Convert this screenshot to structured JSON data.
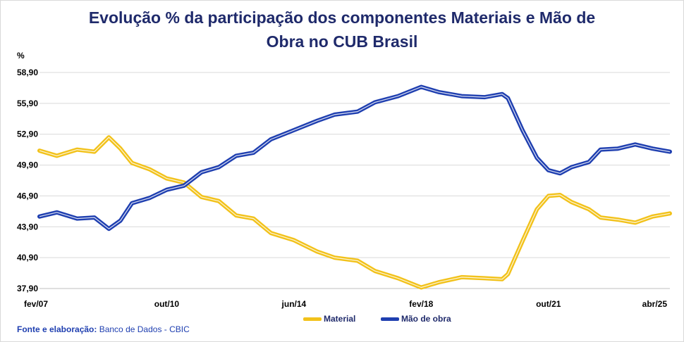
{
  "title": {
    "line1": "Evolução % da participação dos componentes Materiais e Mão de",
    "line2": "Obra no CUB Brasil"
  },
  "unit_label": "%",
  "source": {
    "label": "Fonte e elaboração:",
    "text": " Banco de Dados - CBIC"
  },
  "colors": {
    "material": "#f2c21b",
    "mao_de_obra": "#1f3fb0",
    "grid": "#d9d9d9",
    "text": "#1f2a6b"
  },
  "chart_data": {
    "type": "line",
    "title": "Evolução % da participação dos componentes Materiais e Mão de Obra no CUB Brasil",
    "ylabel": "%",
    "ylim": [
      37.9,
      58.9
    ],
    "yticks": [
      "58,90",
      "55,90",
      "52,90",
      "49,90",
      "46,90",
      "43,90",
      "40,90",
      "37,90"
    ],
    "ytick_values": [
      58.9,
      55.9,
      52.9,
      49.9,
      46.9,
      43.9,
      40.9,
      37.9
    ],
    "x_range": [
      "2007-02",
      "2025-04"
    ],
    "xticks": [
      {
        "label": "fev/07",
        "date": "2007-02"
      },
      {
        "label": "out/10",
        "date": "2010-10"
      },
      {
        "label": "jun/14",
        "date": "2014-06"
      },
      {
        "label": "fev/18",
        "date": "2018-02"
      },
      {
        "label": "out/21",
        "date": "2021-10"
      },
      {
        "label": "abr/25",
        "date": "2025-04"
      }
    ],
    "legend_position": "bottom",
    "grid": true,
    "series": [
      {
        "name": "Material",
        "points": [
          [
            "2007-02",
            51.3
          ],
          [
            "2007-08",
            50.8
          ],
          [
            "2008-03",
            51.4
          ],
          [
            "2008-09",
            51.2
          ],
          [
            "2009-02",
            52.6
          ],
          [
            "2009-06",
            51.5
          ],
          [
            "2009-10",
            50.1
          ],
          [
            "2010-04",
            49.5
          ],
          [
            "2010-10",
            48.6
          ],
          [
            "2011-04",
            48.2
          ],
          [
            "2011-10",
            46.8
          ],
          [
            "2012-04",
            46.4
          ],
          [
            "2012-10",
            45.0
          ],
          [
            "2013-04",
            44.7
          ],
          [
            "2013-10",
            43.3
          ],
          [
            "2014-06",
            42.6
          ],
          [
            "2015-02",
            41.5
          ],
          [
            "2015-08",
            40.9
          ],
          [
            "2016-04",
            40.6
          ],
          [
            "2016-10",
            39.6
          ],
          [
            "2017-06",
            38.9
          ],
          [
            "2018-02",
            38.0
          ],
          [
            "2018-08",
            38.5
          ],
          [
            "2019-04",
            39.0
          ],
          [
            "2019-12",
            38.9
          ],
          [
            "2020-06",
            38.8
          ],
          [
            "2020-08",
            39.3
          ],
          [
            "2021-01",
            42.5
          ],
          [
            "2021-06",
            45.6
          ],
          [
            "2021-10",
            46.9
          ],
          [
            "2022-02",
            47.0
          ],
          [
            "2022-06",
            46.3
          ],
          [
            "2022-12",
            45.6
          ],
          [
            "2023-04",
            44.8
          ],
          [
            "2023-10",
            44.6
          ],
          [
            "2024-04",
            44.3
          ],
          [
            "2024-10",
            44.9
          ],
          [
            "2025-04",
            45.2
          ]
        ]
      },
      {
        "name": "Mão de obra",
        "points": [
          [
            "2007-02",
            44.9
          ],
          [
            "2007-08",
            45.3
          ],
          [
            "2008-03",
            44.7
          ],
          [
            "2008-09",
            44.8
          ],
          [
            "2009-02",
            43.7
          ],
          [
            "2009-06",
            44.5
          ],
          [
            "2009-10",
            46.2
          ],
          [
            "2010-04",
            46.7
          ],
          [
            "2010-10",
            47.5
          ],
          [
            "2011-04",
            47.9
          ],
          [
            "2011-10",
            49.2
          ],
          [
            "2012-04",
            49.7
          ],
          [
            "2012-10",
            50.8
          ],
          [
            "2013-04",
            51.1
          ],
          [
            "2013-10",
            52.4
          ],
          [
            "2014-06",
            53.3
          ],
          [
            "2015-02",
            54.2
          ],
          [
            "2015-08",
            54.8
          ],
          [
            "2016-04",
            55.1
          ],
          [
            "2016-10",
            56.0
          ],
          [
            "2017-06",
            56.6
          ],
          [
            "2018-02",
            57.5
          ],
          [
            "2018-08",
            57.0
          ],
          [
            "2019-04",
            56.6
          ],
          [
            "2019-12",
            56.5
          ],
          [
            "2020-06",
            56.8
          ],
          [
            "2020-08",
            56.4
          ],
          [
            "2021-01",
            53.3
          ],
          [
            "2021-06",
            50.6
          ],
          [
            "2021-10",
            49.4
          ],
          [
            "2022-02",
            49.1
          ],
          [
            "2022-06",
            49.7
          ],
          [
            "2022-12",
            50.2
          ],
          [
            "2023-04",
            51.4
          ],
          [
            "2023-10",
            51.5
          ],
          [
            "2024-04",
            51.9
          ],
          [
            "2024-10",
            51.5
          ],
          [
            "2025-04",
            51.2
          ]
        ]
      }
    ]
  }
}
